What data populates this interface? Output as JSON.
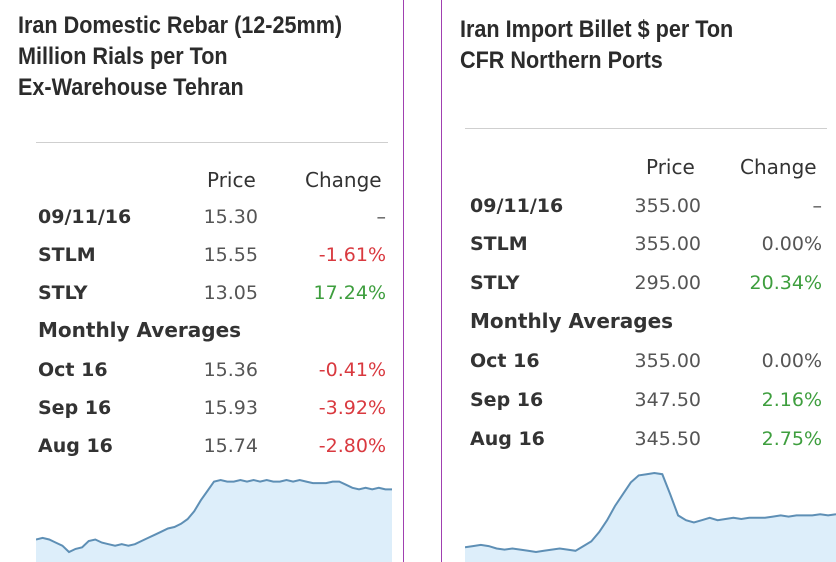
{
  "left": {
    "title_lines": [
      "Iran Domestic Rebar (12-25mm)",
      "Million Rials per Ton",
      "Ex-Warehouse Tehran"
    ],
    "header": {
      "price": "Price",
      "change": "Change"
    },
    "rows": [
      {
        "label": "09/11/16",
        "price": "15.30",
        "change": "–",
        "trend": "neutral"
      },
      {
        "label": "STLM",
        "price": "15.55",
        "change": "-1.61%",
        "trend": "neg"
      },
      {
        "label": "STLY",
        "price": "13.05",
        "change": "17.24%",
        "trend": "pos"
      }
    ],
    "monthly_label": "Monthly Averages",
    "monthly": [
      {
        "label": "Oct 16",
        "price": "15.36",
        "change": "-0.41%",
        "trend": "neg"
      },
      {
        "label": "Sep 16",
        "price": "15.93",
        "change": "-3.92%",
        "trend": "neg"
      },
      {
        "label": "Aug 16",
        "price": "15.74",
        "change": "-2.80%",
        "trend": "neg"
      }
    ],
    "sparkline": [
      34,
      35,
      34,
      32,
      30,
      26,
      28,
      29,
      33,
      34,
      32,
      31,
      30,
      31,
      30,
      31,
      33,
      35,
      37,
      39,
      41,
      42,
      44,
      47,
      52,
      59,
      65,
      71,
      72,
      71,
      71,
      72,
      71,
      72,
      71,
      72,
      71,
      71,
      72,
      71,
      72,
      71,
      70,
      70,
      70,
      71,
      71,
      69,
      67,
      66,
      67,
      66,
      67,
      66,
      66
    ]
  },
  "right": {
    "title_lines": [
      "Iran Import Billet $ per Ton",
      "CFR Northern Ports"
    ],
    "header": {
      "price": "Price",
      "change": "Change"
    },
    "rows": [
      {
        "label": "09/11/16",
        "price": "355.00",
        "change": "–",
        "trend": "neutral"
      },
      {
        "label": "STLM",
        "price": "355.00",
        "change": "0.00%",
        "trend": "neutral"
      },
      {
        "label": "STLY",
        "price": "295.00",
        "change": "20.34%",
        "trend": "pos"
      }
    ],
    "monthly_label": "Monthly Averages",
    "monthly": [
      {
        "label": "Oct 16",
        "price": "355.00",
        "change": "0.00%",
        "trend": "neutral"
      },
      {
        "label": "Sep 16",
        "price": "347.50",
        "change": "2.16%",
        "trend": "pos"
      },
      {
        "label": "Aug 16",
        "price": "345.50",
        "change": "2.75%",
        "trend": "pos"
      }
    ],
    "sparkline": [
      295,
      296,
      297,
      296,
      294,
      293,
      294,
      293,
      292,
      291,
      292,
      293,
      294,
      293,
      292,
      296,
      300,
      308,
      318,
      330,
      340,
      350,
      356,
      357,
      358,
      357,
      340,
      322,
      318,
      316,
      318,
      320,
      318,
      319,
      320,
      319,
      320,
      320,
      320,
      321,
      322,
      321,
      322,
      322,
      322,
      323,
      322,
      323
    ]
  },
  "colors": {
    "negative": "#d9393f",
    "positive": "#3e9e3e",
    "spark_line": "#5e8fb5",
    "spark_fill": "#ddeefa",
    "divider": "#a040b0"
  }
}
